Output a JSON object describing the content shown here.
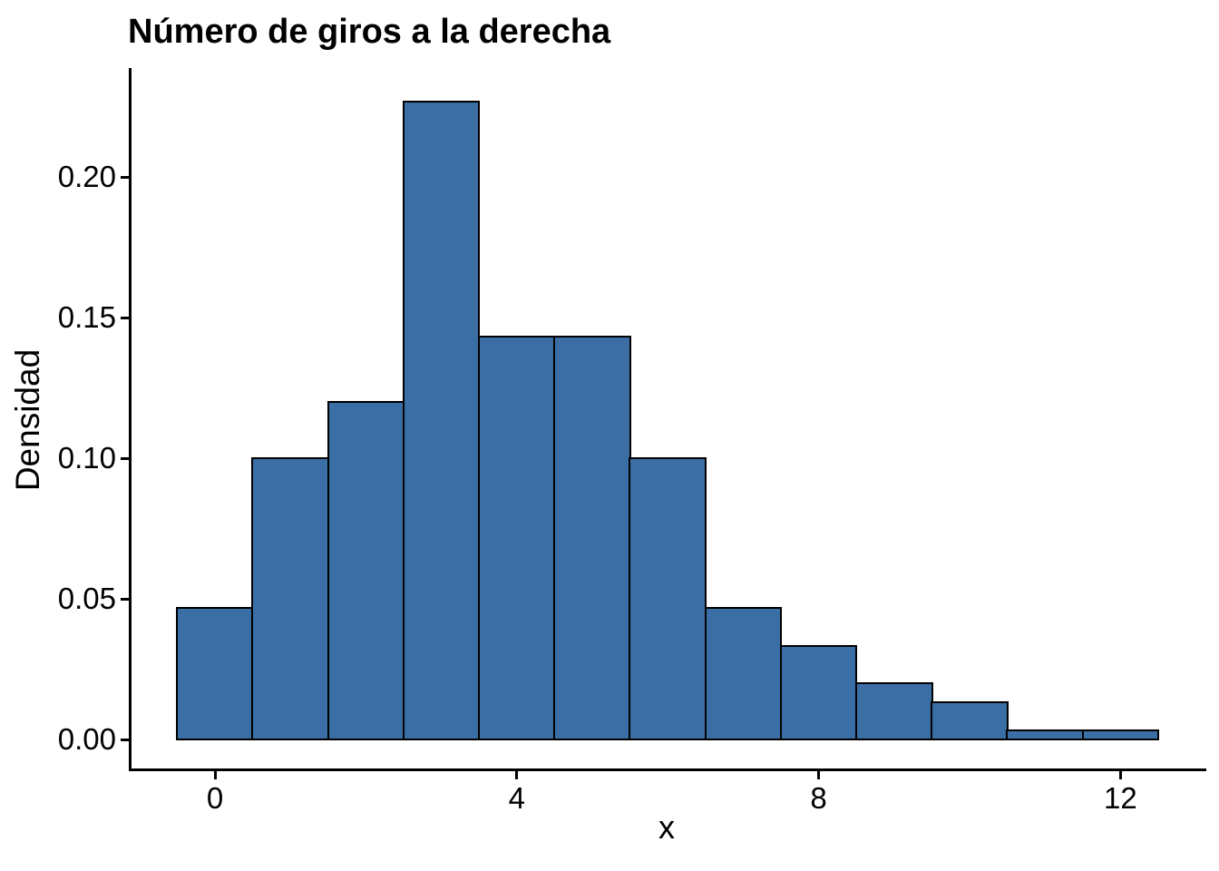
{
  "chart_data": {
    "type": "bar",
    "subtype": "histogram",
    "title": "Número de giros a la derecha",
    "xlabel": "x",
    "ylabel": "Densidad",
    "bin_width": 1,
    "bin_centers": [
      0,
      1,
      2,
      3,
      4,
      5,
      6,
      7,
      8,
      9,
      10,
      11,
      12
    ],
    "bin_edges": [
      -0.5,
      0.5,
      1.5,
      2.5,
      3.5,
      4.5,
      5.5,
      6.5,
      7.5,
      8.5,
      9.5,
      10.5,
      11.5,
      12.5
    ],
    "densities": [
      0.0467,
      0.1,
      0.12,
      0.2267,
      0.1433,
      0.1433,
      0.1,
      0.0467,
      0.0333,
      0.02,
      0.0133,
      0.0033,
      0.0033
    ],
    "x_ticks": [
      {
        "value": 0,
        "label": "0"
      },
      {
        "value": 4,
        "label": "4"
      },
      {
        "value": 8,
        "label": "8"
      },
      {
        "value": 12,
        "label": "12"
      }
    ],
    "y_ticks": [
      {
        "value": 0.0,
        "label": "0.00"
      },
      {
        "value": 0.05,
        "label": "0.05"
      },
      {
        "value": 0.1,
        "label": "0.10"
      },
      {
        "value": 0.15,
        "label": "0.15"
      },
      {
        "value": 0.2,
        "label": "0.20"
      }
    ],
    "xlim": [
      -1.15,
      13.15
    ],
    "ylim": [
      0,
      0.238
    ],
    "grid": false,
    "legend_position": "none",
    "colors": {
      "bar_fill": "#3A6EA5",
      "bar_stroke": "#000000",
      "axis": "#000000",
      "text": "#000000",
      "background": "#FFFFFF"
    }
  }
}
